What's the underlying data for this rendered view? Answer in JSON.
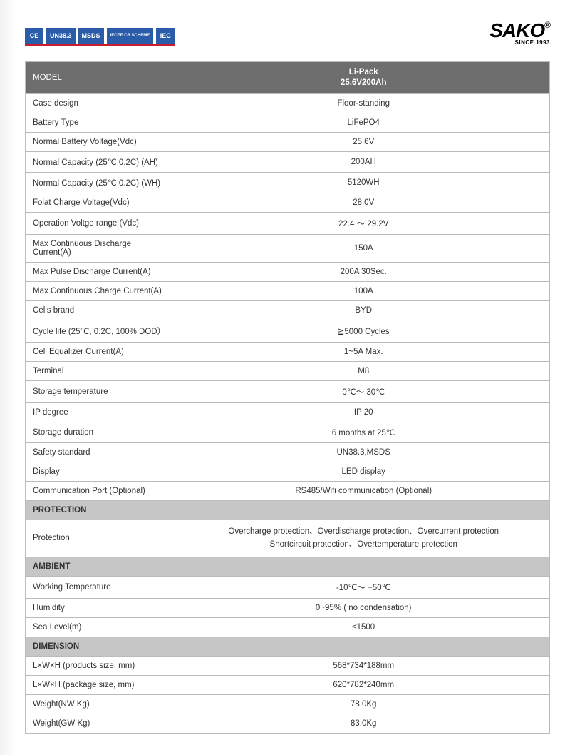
{
  "certBadges": [
    "CE",
    "UN38.3",
    "MSDS",
    "IECEE CB SCHEME",
    "IEC"
  ],
  "logo": {
    "main": "SAKO",
    "sub": "SINCE 1993"
  },
  "header": {
    "label": "MODEL",
    "value": "Li-Pack\n25.6V200Ah"
  },
  "mainRows": [
    {
      "label": "Case design",
      "value": "Floor-standing"
    },
    {
      "label": "Battery Type",
      "value": "LiFePO4"
    },
    {
      "label": "Normal Battery Voltage(Vdc)",
      "value": "25.6V"
    },
    {
      "label": "Normal Capacity (25℃ 0.2C) (AH)",
      "value": "200AH"
    },
    {
      "label": "Normal Capacity (25℃ 0.2C) (WH)",
      "value": "5120WH"
    },
    {
      "label": "Folat Charge Voltage(Vdc)",
      "value": "28.0V"
    },
    {
      "label": "Operation Voltge range (Vdc)",
      "value": "22.4 ～ 29.2V"
    },
    {
      "label": "Max Continuous Discharge Current(A)",
      "value": "150A"
    },
    {
      "label": "Max Pulse Discharge Current(A)",
      "value": "200A 30Sec."
    },
    {
      "label": "Max Continuous Charge Current(A)",
      "value": "100A"
    },
    {
      "label": "Cells brand",
      "value": "BYD"
    },
    {
      "label": "Cycle life (25℃, 0.2C, 100% DOD）",
      "value": "≧5000 Cycles"
    },
    {
      "label": "Cell Equalizer Current(A)",
      "value": "1~5A Max."
    },
    {
      "label": "Terminal",
      "value": "M8"
    },
    {
      "label": "Storage temperature",
      "value": "0℃～ 30℃"
    },
    {
      "label": "IP degree",
      "value": "IP 20"
    },
    {
      "label": "Storage duration",
      "value": "6 months at 25℃"
    },
    {
      "label": "Safety standard",
      "value": "UN38.3,MSDS"
    },
    {
      "label": "Display",
      "value": "LED display"
    },
    {
      "label": "Communication Port (Optional)",
      "value": "RS485/Wifi communication (Optional)"
    }
  ],
  "sections": {
    "protection": {
      "title": "PROTECTION",
      "rows": [
        {
          "label": "Protection",
          "value": "Overcharge protection、Overdischarge protection、Overcurrent protection\nShortcircuit protection、Overtemperature protection"
        }
      ]
    },
    "ambient": {
      "title": "AMBIENT",
      "rows": [
        {
          "label": "Working Temperature",
          "value": "-10℃～ +50℃"
        },
        {
          "label": "Humidity",
          "value": "0~95% ( no condensation)"
        },
        {
          "label": "Sea Level(m)",
          "value": "≤1500"
        }
      ]
    },
    "dimension": {
      "title": "DIMENSION",
      "rows": [
        {
          "label": "L×W×H (products size, mm)",
          "value": "568*734*188mm"
        },
        {
          "label": "L×W×H (package size, mm)",
          "value": "620*782*240mm"
        },
        {
          "label": "Weight(NW Kg)",
          "value": "78.0Kg"
        },
        {
          "label": "Weight(GW Kg)",
          "value": "83.0Kg"
        }
      ]
    }
  }
}
